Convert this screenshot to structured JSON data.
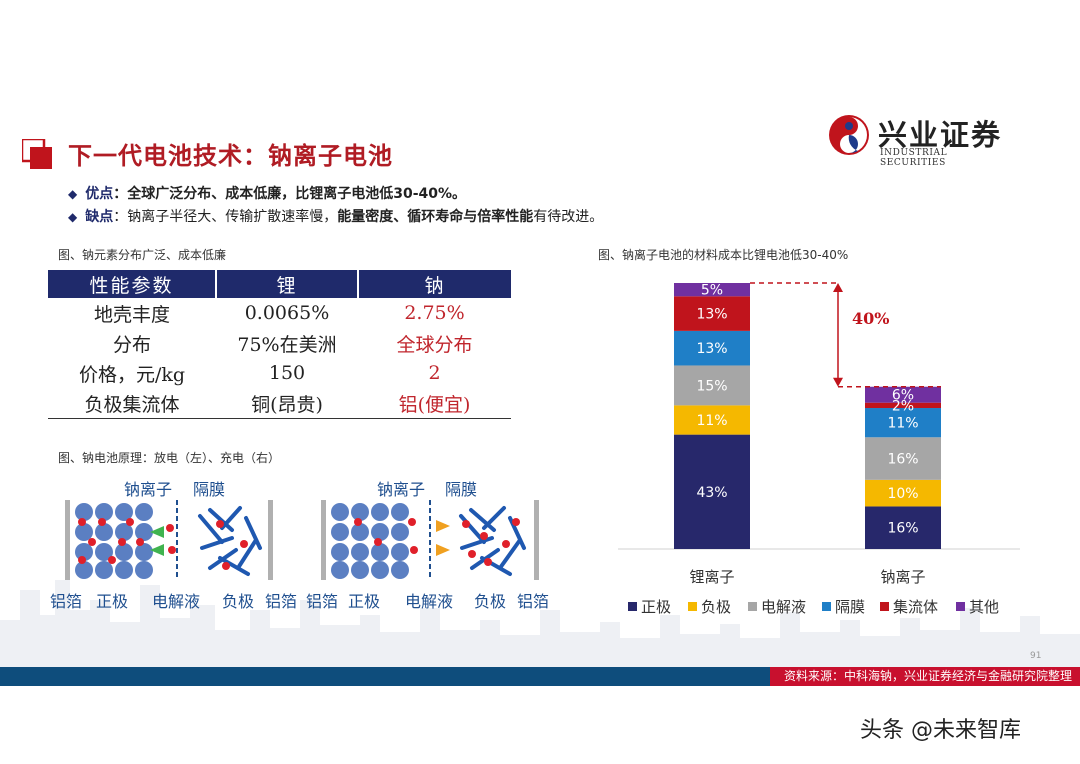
{
  "header": {
    "title": "下一代电池技术：钠离子电池",
    "logo_cn": "兴业证券",
    "logo_en": "INDUSTRIAL SECURITIES"
  },
  "bullets": [
    {
      "head": "优点",
      "sep": "：",
      "bold": "全球广泛分布、成本低廉，比锂离子电池低30-40%。",
      "rest": ""
    },
    {
      "head": "缺点",
      "sep": "：",
      "plain": "钠离子半径大、传输扩散速率慢，",
      "bold": "能量密度、循环寿命与倍率性能",
      "rest": "有待改进。"
    }
  ],
  "table_caption": "图、钠元素分布广泛、成本低廉",
  "table": {
    "headers": [
      "性能参数",
      "锂",
      "钠"
    ],
    "rows": [
      [
        "地壳丰度",
        "0.0065%",
        "2.75%"
      ],
      [
        "分布",
        "75%在美洲",
        "全球分布"
      ],
      [
        "价格，元/kg",
        "150",
        "2"
      ],
      [
        "负极集流体",
        "铜(昂贵)",
        "铝(便宜)"
      ]
    ]
  },
  "diagram_caption": "图、钠电池原理：放电（左）、充电（右）",
  "diagrams": {
    "left": {
      "sodium_ion": "钠离子",
      "separator": "隔膜",
      "al_foil_left": "铝箔",
      "cathode": "正极",
      "electrolyte": "电解液",
      "anode": "负极",
      "al_foil_right": "铝箔"
    },
    "right": {
      "sodium_ion": "钠离子",
      "separator": "隔膜",
      "al_foil_left": "铝箔",
      "cathode": "正极",
      "electrolyte": "电解液",
      "anode": "负极",
      "al_foil_right": "铝箔"
    }
  },
  "chart_caption": "图、钠离子电池的材料成本比锂电池低30-40%",
  "chart_data": {
    "type": "bar",
    "stacked": true,
    "categories": [
      "锂离子",
      "钠离子"
    ],
    "totals": [
      100,
      61
    ],
    "series": [
      {
        "name": "正极",
        "color": "#27286b",
        "values": [
          43,
          16
        ]
      },
      {
        "name": "负极",
        "color": "#f5b800",
        "values": [
          11,
          10
        ]
      },
      {
        "name": "电解液",
        "color": "#a6a6a6",
        "values": [
          15,
          16
        ]
      },
      {
        "name": "隔膜",
        "color": "#1f7fc7",
        "values": [
          13,
          11
        ]
      },
      {
        "name": "集流体",
        "color": "#c0141c",
        "values": [
          13,
          2
        ]
      },
      {
        "name": "其他",
        "color": "#7030a0",
        "values": [
          5,
          6
        ]
      }
    ],
    "labels": [
      [
        "43%",
        "11%",
        "15%",
        "13%",
        "13%",
        "5%"
      ],
      [
        "16%",
        "10%",
        "16%",
        "11%",
        "2%",
        "6%"
      ]
    ],
    "annotation": "40%",
    "annotation_color": "#c0141c",
    "legend_position": "bottom",
    "grid": false
  },
  "footer": {
    "source_label": "资料来源：",
    "source_text": "中科海钠，兴业证券经济与金融研究院整理",
    "page_number": "91"
  },
  "watermark": "头条 @未来智库",
  "colors": {
    "title_red": "#b01c24",
    "navy": "#1f2a6b",
    "footer_blue": "#0e4d7c",
    "footer_red": "#c8102e"
  }
}
